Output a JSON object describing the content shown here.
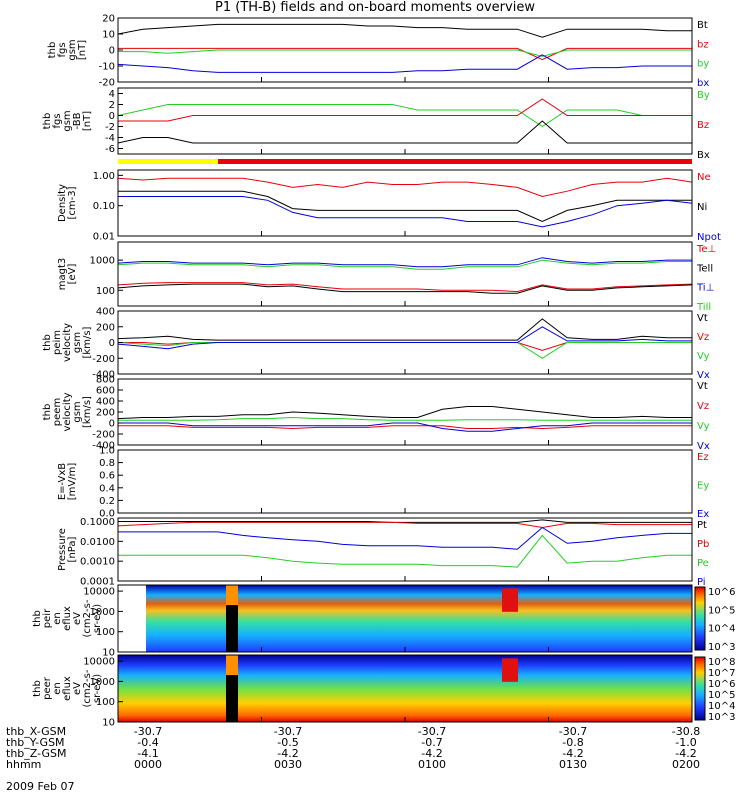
{
  "title": "P1 (TH-B) fields and on-board moments overview",
  "colors": {
    "black": "#000000",
    "red": "#e8000b",
    "green": "#22d022",
    "blue": "#0000dd",
    "yellow": "#ffff00"
  },
  "chart_data": [
    {
      "type": "line",
      "ylabel": [
        "thb",
        "fgs",
        "gsm",
        "[nT]"
      ],
      "ylim": [
        -20,
        20
      ],
      "log": false,
      "yticks": [
        "20",
        "10",
        "0",
        "-10",
        "-20"
      ],
      "series": [
        {
          "name": "Bt",
          "color": "red_or_black",
          "values": [
            10,
            13,
            14,
            15,
            16,
            16,
            16,
            16,
            16,
            16,
            15,
            15,
            14,
            14,
            13,
            13,
            13,
            8,
            13,
            13,
            13,
            13,
            12,
            12
          ]
        },
        {
          "name": "bz",
          "values": [
            1,
            1,
            1,
            1,
            1,
            1,
            1,
            1,
            1,
            1,
            1,
            1,
            1,
            1,
            1,
            1,
            1,
            -6,
            1,
            1,
            1,
            1,
            1,
            1
          ]
        },
        {
          "name": "by",
          "values": [
            -1,
            -1,
            -2,
            -1,
            0,
            0,
            0,
            0,
            0,
            0,
            0,
            0,
            0,
            0,
            0,
            0,
            0,
            -4,
            0,
            0,
            0,
            0,
            0,
            0
          ]
        },
        {
          "name": "bx",
          "values": [
            -9,
            -10,
            -11,
            -13,
            -14,
            -14,
            -14,
            -14,
            -14,
            -14,
            -14,
            -14,
            -13,
            -13,
            -12,
            -12,
            -12,
            -3,
            -12,
            -11,
            -11,
            -10,
            -10,
            -10
          ]
        }
      ]
    },
    {
      "type": "line",
      "ylabel": [
        "thb",
        "fgs",
        "gsm",
        "-BB",
        "[nT]"
      ],
      "ylim": [
        -7,
        5
      ],
      "log": false,
      "yticks": [
        "4",
        "2",
        "0",
        "-2",
        "-4",
        "-6"
      ],
      "series": [
        {
          "name": "By",
          "values": [
            0,
            1,
            2,
            2,
            2,
            2,
            2,
            2,
            2,
            2,
            2,
            2,
            1,
            1,
            1,
            1,
            1,
            -2,
            1,
            1,
            1,
            0,
            0,
            0
          ]
        },
        {
          "name": "Bz",
          "values": [
            -1,
            -1,
            -1,
            0,
            0,
            0,
            0,
            0,
            0,
            0,
            0,
            0,
            0,
            0,
            0,
            0,
            0,
            3,
            0,
            0,
            0,
            0,
            0,
            0
          ]
        },
        {
          "name": "Bx",
          "values": [
            -5,
            -4,
            -4,
            -5,
            -5,
            -5,
            -5,
            -5,
            -5,
            -5,
            -5,
            -5,
            -5,
            -5,
            -5,
            -5,
            -5,
            -1,
            -5,
            -5,
            -5,
            -5,
            -5,
            -5
          ]
        }
      ]
    },
    {
      "type": "line",
      "ylabel": [
        "Density",
        "[cm-3]"
      ],
      "ylim": [
        0.01,
        1.5
      ],
      "log": true,
      "yticks": [
        "1.00",
        "0.10",
        "0.01"
      ],
      "series": [
        {
          "name": "Ne",
          "values": [
            0.8,
            0.7,
            0.8,
            0.8,
            0.8,
            0.8,
            0.6,
            0.4,
            0.5,
            0.4,
            0.6,
            0.5,
            0.5,
            0.6,
            0.6,
            0.5,
            0.4,
            0.2,
            0.3,
            0.5,
            0.6,
            0.6,
            0.8,
            0.6
          ]
        },
        {
          "name": "Ni",
          "values": [
            0.3,
            0.3,
            0.3,
            0.3,
            0.3,
            0.3,
            0.2,
            0.08,
            0.07,
            0.07,
            0.07,
            0.07,
            0.07,
            0.07,
            0.07,
            0.07,
            0.07,
            0.03,
            0.07,
            0.1,
            0.15,
            0.15,
            0.15,
            0.15
          ]
        },
        {
          "name": "Npot",
          "values": [
            0.2,
            0.2,
            0.2,
            0.2,
            0.2,
            0.2,
            0.15,
            0.06,
            0.04,
            0.04,
            0.04,
            0.04,
            0.04,
            0.04,
            0.03,
            0.03,
            0.03,
            0.02,
            0.03,
            0.05,
            0.1,
            0.12,
            0.15,
            0.12
          ]
        }
      ]
    },
    {
      "type": "line",
      "ylabel": [
        "magt3",
        "[eV]"
      ],
      "ylim": [
        30,
        4000
      ],
      "log": true,
      "yticks": [
        "1000",
        "100"
      ],
      "series": [
        {
          "name": "Te⊥",
          "values": [
            150,
            170,
            180,
            180,
            180,
            180,
            150,
            160,
            130,
            110,
            110,
            110,
            110,
            100,
            100,
            100,
            90,
            150,
            110,
            110,
            130,
            140,
            150,
            160
          ]
        },
        {
          "name": "Tell",
          "values": [
            120,
            140,
            150,
            160,
            160,
            160,
            130,
            140,
            110,
            90,
            90,
            90,
            90,
            90,
            90,
            80,
            80,
            140,
            100,
            100,
            120,
            130,
            140,
            150
          ]
        },
        {
          "name": "Ti⊥",
          "values": [
            800,
            900,
            900,
            800,
            800,
            800,
            700,
            800,
            800,
            700,
            700,
            700,
            600,
            600,
            700,
            700,
            700,
            1200,
            900,
            800,
            900,
            900,
            1000,
            1000
          ]
        },
        {
          "name": "Till",
          "values": [
            700,
            800,
            800,
            700,
            700,
            700,
            600,
            700,
            700,
            600,
            600,
            600,
            500,
            500,
            600,
            600,
            600,
            1000,
            800,
            700,
            800,
            800,
            900,
            900
          ]
        }
      ]
    },
    {
      "type": "line",
      "ylabel": [
        "thb",
        "peim",
        "velocity",
        "gsm",
        "[km/s]"
      ],
      "ylim": [
        -400,
        400
      ],
      "log": false,
      "yticks": [
        "400",
        "200",
        "0",
        "-200",
        "-400"
      ],
      "series": [
        {
          "name": "Vt",
          "values": [
            50,
            60,
            80,
            40,
            30,
            30,
            30,
            30,
            30,
            30,
            30,
            30,
            30,
            30,
            30,
            30,
            30,
            300,
            60,
            40,
            40,
            80,
            60,
            60
          ]
        },
        {
          "name": "Vz",
          "values": [
            0,
            0,
            -20,
            0,
            0,
            0,
            0,
            0,
            0,
            0,
            0,
            0,
            0,
            0,
            0,
            0,
            0,
            -100,
            0,
            0,
            0,
            0,
            0,
            0
          ]
        },
        {
          "name": "Vy",
          "values": [
            0,
            -20,
            -40,
            0,
            0,
            0,
            0,
            0,
            0,
            0,
            0,
            0,
            0,
            0,
            0,
            0,
            0,
            -200,
            0,
            0,
            0,
            0,
            0,
            0
          ]
        },
        {
          "name": "Vx",
          "values": [
            -20,
            -50,
            -80,
            -20,
            0,
            0,
            0,
            0,
            0,
            0,
            0,
            0,
            0,
            0,
            0,
            0,
            0,
            200,
            20,
            20,
            20,
            40,
            20,
            20
          ]
        }
      ]
    },
    {
      "type": "line",
      "ylabel": [
        "thb",
        "peem",
        "velocity",
        "gsm",
        "[km/s]"
      ],
      "ylim": [
        -400,
        800
      ],
      "log": false,
      "yticks": [
        "800",
        "600",
        "400",
        "200",
        "0",
        "-200",
        "-400"
      ],
      "series": [
        {
          "name": "Vt",
          "values": [
            80,
            100,
            100,
            120,
            120,
            150,
            150,
            200,
            180,
            150,
            120,
            100,
            100,
            250,
            300,
            300,
            250,
            200,
            150,
            100,
            100,
            120,
            100,
            100
          ]
        },
        {
          "name": "Vz",
          "values": [
            -50,
            -50,
            -50,
            -80,
            -80,
            -80,
            -80,
            -100,
            -80,
            -80,
            -80,
            -50,
            -50,
            -50,
            -100,
            -100,
            -80,
            -100,
            -80,
            -50,
            -50,
            -50,
            -50,
            -50
          ]
        },
        {
          "name": "Vy",
          "values": [
            50,
            50,
            50,
            50,
            60,
            80,
            80,
            100,
            80,
            80,
            60,
            50,
            50,
            50,
            60,
            60,
            60,
            50,
            50,
            50,
            50,
            50,
            50,
            50
          ]
        },
        {
          "name": "Vx",
          "values": [
            0,
            0,
            0,
            -50,
            -50,
            -50,
            -50,
            -50,
            -50,
            -50,
            -50,
            0,
            0,
            -100,
            -150,
            -150,
            -100,
            -50,
            -50,
            0,
            0,
            0,
            0,
            0
          ]
        }
      ]
    },
    {
      "type": "line",
      "ylabel": [
        "E=-VxB",
        "[mV/m]"
      ],
      "ylim": [
        0,
        1
      ],
      "log": false,
      "yticks": [
        "1.0",
        "0.8",
        "0.6",
        "0.4",
        "0.2",
        "0.0"
      ],
      "series": [
        {
          "name": "Ez",
          "values": []
        },
        {
          "name": "Ey",
          "values": []
        },
        {
          "name": "Ex",
          "values": []
        }
      ]
    },
    {
      "type": "line",
      "ylabel": [
        "Pressure",
        "[nPa]"
      ],
      "ylim": [
        0.0001,
        0.15
      ],
      "log": true,
      "yticks": [
        "0.1000",
        "0.0100",
        "0.0010",
        "0.0001"
      ],
      "series": [
        {
          "name": "Pt",
          "values": [
            0.1,
            0.1,
            0.1,
            0.1,
            0.1,
            0.1,
            0.1,
            0.1,
            0.1,
            0.1,
            0.1,
            0.09,
            0.09,
            0.09,
            0.09,
            0.09,
            0.09,
            0.12,
            0.09,
            0.09,
            0.09,
            0.09,
            0.09,
            0.09
          ]
        },
        {
          "name": "Pb",
          "values": [
            0.06,
            0.07,
            0.08,
            0.09,
            0.09,
            0.09,
            0.09,
            0.09,
            0.09,
            0.09,
            0.09,
            0.09,
            0.08,
            0.08,
            0.08,
            0.08,
            0.08,
            0.05,
            0.08,
            0.08,
            0.07,
            0.07,
            0.07,
            0.07
          ]
        },
        {
          "name": "Pe",
          "values": [
            0.002,
            0.002,
            0.002,
            0.002,
            0.002,
            0.002,
            0.0015,
            0.001,
            0.0008,
            0.0007,
            0.0007,
            0.0007,
            0.0007,
            0.0006,
            0.0006,
            0.0006,
            0.0005,
            0.02,
            0.0008,
            0.001,
            0.001,
            0.0015,
            0.002,
            0.002
          ]
        },
        {
          "name": "Pi",
          "values": [
            0.03,
            0.03,
            0.03,
            0.03,
            0.03,
            0.02,
            0.015,
            0.012,
            0.01,
            0.007,
            0.006,
            0.006,
            0.006,
            0.005,
            0.005,
            0.005,
            0.004,
            0.05,
            0.008,
            0.01,
            0.015,
            0.02,
            0.025,
            0.025
          ]
        }
      ]
    },
    {
      "type": "heatmap",
      "ylabel": [
        "thb",
        "peir",
        "en",
        "eflux",
        "eV",
        "(cm2-s-",
        "sr-eV)"
      ],
      "ylim": [
        10,
        20000
      ],
      "log": true,
      "yticks": [
        "10000",
        "1000",
        "100",
        "10"
      ],
      "colorbar_ticks": [
        "10^6",
        "10^5",
        "10^4",
        "10^3"
      ]
    },
    {
      "type": "heatmap",
      "ylabel": [
        "thb",
        "peer",
        "en",
        "eflux",
        "eV",
        "(cm2-s-",
        "sr-eV)"
      ],
      "ylim": [
        10,
        20000
      ],
      "log": true,
      "yticks": [
        "10000",
        "1000",
        "100",
        "10"
      ],
      "colorbar_ticks": [
        "10^8",
        "10^7",
        "10^6",
        "10^5",
        "10^4",
        "10^3"
      ]
    }
  ],
  "footer": {
    "rows": [
      {
        "label": "thb_X-GSM",
        "values": [
          "-30.7",
          "-30.7",
          "-30.7",
          "-30.7",
          "-30.8"
        ]
      },
      {
        "label": "thb_Y-GSM",
        "values": [
          "-0.4",
          "-0.5",
          "-0.7",
          "-0.8",
          "-1.0"
        ]
      },
      {
        "label": "thb_Z-GSM",
        "values": [
          "-4.1",
          "-4.2",
          "-4.2",
          "-4.2",
          "-4.2"
        ]
      },
      {
        "label": "hhmm",
        "values": [
          "0000",
          "0030",
          "0100",
          "0130",
          "0200"
        ]
      }
    ],
    "date": "2009 Feb 07"
  }
}
